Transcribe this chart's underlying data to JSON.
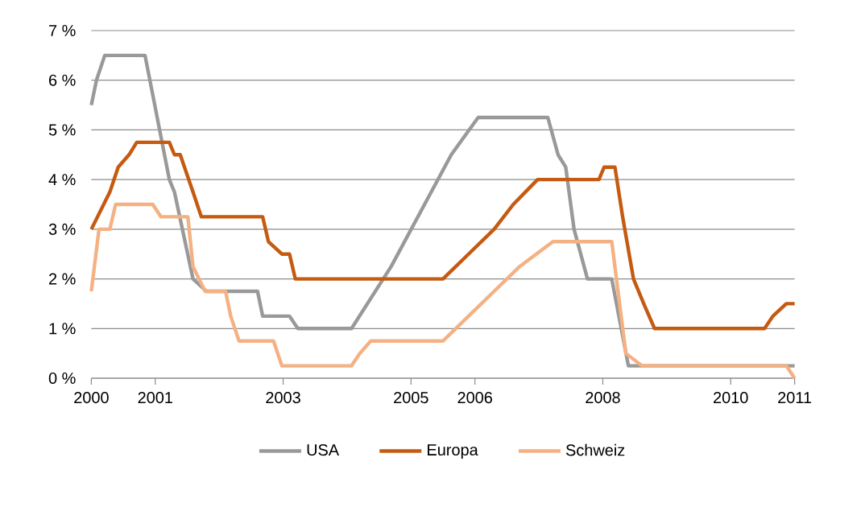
{
  "chart_data": {
    "type": "line",
    "xlim": [
      2000,
      2011
    ],
    "xticks": [
      2000,
      2001,
      2003,
      2005,
      2006,
      2008,
      2010,
      2011
    ],
    "ylim": [
      0,
      7
    ],
    "yticks": [
      {
        "value": 0,
        "label": "0 %"
      },
      {
        "value": 1,
        "label": "1 %"
      },
      {
        "value": 2,
        "label": "2 %"
      },
      {
        "value": 3,
        "label": "3 %"
      },
      {
        "value": 4,
        "label": "4 %"
      },
      {
        "value": 5,
        "label": "5 %"
      },
      {
        "value": 6,
        "label": "6 %"
      },
      {
        "value": 7,
        "label": "7 %"
      }
    ],
    "grid": "y",
    "legend": "bottom",
    "marker": "none",
    "line_style": "solid",
    "series": [
      {
        "name": "USA",
        "color": "#999999",
        "x": [
          2000.0,
          2000.08,
          2000.21,
          2000.84,
          2001.22,
          2001.3,
          2001.59,
          2001.8,
          2002.6,
          2002.68,
          2003.1,
          2003.23,
          2004.07,
          2004.69,
          2005.63,
          2006.05,
          2007.14,
          2007.3,
          2007.42,
          2007.55,
          2007.76,
          2008.14,
          2008.4,
          2011.0
        ],
        "values": [
          5.5,
          6.0,
          6.5,
          6.5,
          4.0,
          3.75,
          2.0,
          1.75,
          1.75,
          1.25,
          1.25,
          1.0,
          1.0,
          2.25,
          4.5,
          5.25,
          5.25,
          4.5,
          4.25,
          3.0,
          2.0,
          2.0,
          0.25,
          0.25
        ]
      },
      {
        "name": "Europa",
        "color": "#c55a11",
        "x": [
          2000.0,
          2000.29,
          2000.42,
          2000.59,
          2000.71,
          2001.22,
          2001.3,
          2001.39,
          2001.59,
          2001.72,
          2002.68,
          2002.77,
          2002.98,
          2003.1,
          2003.19,
          2005.5,
          2005.9,
          2006.3,
          2006.6,
          2006.98,
          2007.94,
          2008.02,
          2008.19,
          2008.31,
          2008.48,
          2008.64,
          2008.81,
          2010.53,
          2010.66,
          2010.87,
          2011.0
        ],
        "values": [
          3.0,
          3.75,
          4.25,
          4.5,
          4.75,
          4.75,
          4.5,
          4.5,
          3.75,
          3.25,
          3.25,
          2.75,
          2.5,
          2.5,
          2.0,
          2.0,
          2.5,
          3.0,
          3.5,
          4.0,
          4.0,
          4.25,
          4.25,
          3.25,
          2.0,
          1.5,
          1.0,
          1.0,
          1.25,
          1.5,
          1.5
        ]
      },
      {
        "name": "Schweiz",
        "color": "#f4b183",
        "x": [
          2000.0,
          2000.12,
          2000.29,
          2000.38,
          2000.96,
          2001.09,
          2001.51,
          2001.59,
          2001.78,
          2002.1,
          2002.18,
          2002.31,
          2002.85,
          2002.98,
          2004.07,
          2004.2,
          2004.37,
          2005.5,
          2005.9,
          2006.3,
          2006.7,
          2007.22,
          2008.14,
          2008.36,
          2008.61,
          2010.87,
          2011.0
        ],
        "values": [
          1.75,
          3.0,
          3.0,
          3.5,
          3.5,
          3.25,
          3.25,
          2.25,
          1.75,
          1.75,
          1.25,
          0.75,
          0.75,
          0.25,
          0.25,
          0.5,
          0.75,
          0.75,
          1.25,
          1.75,
          2.25,
          2.75,
          2.75,
          0.5,
          0.25,
          0.25,
          0.0
        ]
      }
    ]
  }
}
